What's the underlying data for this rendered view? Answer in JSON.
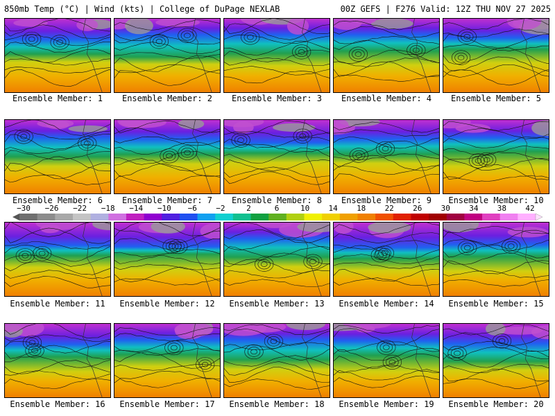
{
  "header": {
    "left": "850mb Temp (°C) | Wind (kts) | College of DuPage NEXLAB",
    "right": "00Z GEFS | F276 Valid: 12Z THU NOV 27 2025"
  },
  "members": [
    "Ensemble Member: 1",
    "Ensemble Member: 2",
    "Ensemble Member: 3",
    "Ensemble Member: 4",
    "Ensemble Member: 5",
    "Ensemble Member: 6",
    "Ensemble Member: 7",
    "Ensemble Member: 8",
    "Ensemble Member: 9",
    "Ensemble Member: 10",
    "Ensemble Member: 11",
    "Ensemble Member: 12",
    "Ensemble Member: 13",
    "Ensemble Member: 14",
    "Ensemble Member: 15",
    "Ensemble Member: 16",
    "Ensemble Member: 17",
    "Ensemble Member: 18",
    "Ensemble Member: 19",
    "Ensemble Member: 20"
  ],
  "colorbar": {
    "labels": [
      "−30",
      "−26",
      "−22",
      "−18",
      "−14",
      "−10",
      "−6",
      "−2",
      "2",
      "6",
      "10",
      "14",
      "18",
      "22",
      "26",
      "30",
      "34",
      "38",
      "42"
    ],
    "colors": [
      "#707070",
      "#8c8c8c",
      "#a8a8a8",
      "#c4c4c4",
      "#b0b0e0",
      "#d070e0",
      "#c020c0",
      "#9000d0",
      "#5020e0",
      "#2050f0",
      "#10a0f0",
      "#10d0d0",
      "#10c090",
      "#10a040",
      "#60b020",
      "#b0d010",
      "#f0f000",
      "#f0d000",
      "#f0a000",
      "#f08000",
      "#f05000",
      "#e02000",
      "#c00000",
      "#a00000",
      "#a00040",
      "#c00080",
      "#e040c0",
      "#f080f0",
      "#ffb0ff"
    ]
  }
}
